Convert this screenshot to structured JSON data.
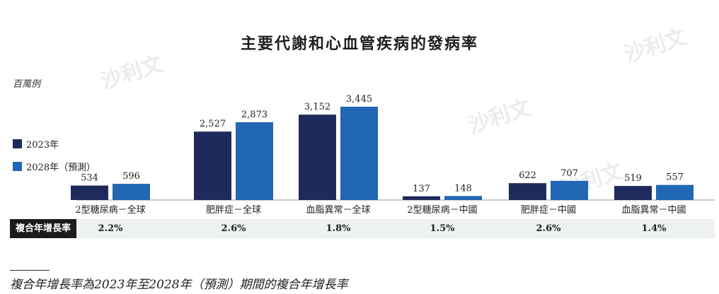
{
  "chart_data": {
    "type": "bar",
    "title": "主要代謝和心血管疾病的發病率",
    "unit_label": "百萬例",
    "categories": [
      "2型糖尿病－全球",
      "肥胖症－全球",
      "血脂異常－全球",
      "2型糖尿病－中國",
      "肥胖症－中國",
      "血脂異常－中國"
    ],
    "series": [
      {
        "name": "2023年",
        "color": "#1f2a5c",
        "values": [
          534,
          2527,
          3152,
          137,
          622,
          519
        ],
        "labels": [
          "534",
          "2,527",
          "3,152",
          "137",
          "622",
          "519"
        ]
      },
      {
        "name": "2028年（預測）",
        "color": "#2167b3",
        "values": [
          596,
          2873,
          3445,
          148,
          707,
          557
        ],
        "labels": [
          "596",
          "2,873",
          "3,445",
          "148",
          "707",
          "557"
        ]
      }
    ],
    "ylim": [
      0,
      3445
    ],
    "grid": false,
    "legend_position": "left"
  },
  "cagr": {
    "label": "複合年增長率",
    "values": [
      "2.2%",
      "2.6%",
      "1.8%",
      "1.5%",
      "2.6%",
      "1.4%"
    ]
  },
  "footnote": "複合年增長率為2023年至2028年（預測）期間的複合年增長率",
  "watermark_text": "沙利文"
}
